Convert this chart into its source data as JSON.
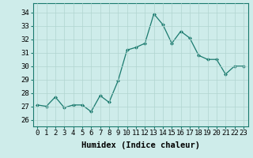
{
  "x": [
    0,
    1,
    2,
    3,
    4,
    5,
    6,
    7,
    8,
    9,
    10,
    11,
    12,
    13,
    14,
    15,
    16,
    17,
    18,
    19,
    20,
    21,
    22,
    23
  ],
  "y": [
    27.1,
    27.0,
    27.7,
    26.9,
    27.1,
    27.1,
    26.6,
    27.8,
    27.3,
    28.9,
    31.2,
    31.4,
    31.7,
    33.9,
    33.1,
    31.7,
    32.6,
    32.1,
    30.8,
    30.5,
    30.5,
    29.4,
    30.0,
    30.0
  ],
  "line_color": "#1a7a6e",
  "marker": "D",
  "marker_size": 2,
  "bg_color": "#ceecea",
  "grid_color": "#b0d4d0",
  "xlabel": "Humidex (Indice chaleur)",
  "xlim": [
    -0.5,
    23.5
  ],
  "ylim": [
    25.5,
    34.7
  ],
  "yticks": [
    26,
    27,
    28,
    29,
    30,
    31,
    32,
    33,
    34
  ],
  "xticks": [
    0,
    1,
    2,
    3,
    4,
    5,
    6,
    7,
    8,
    9,
    10,
    11,
    12,
    13,
    14,
    15,
    16,
    17,
    18,
    19,
    20,
    21,
    22,
    23
  ],
  "tick_fontsize": 6.5,
  "label_fontsize": 7.5
}
